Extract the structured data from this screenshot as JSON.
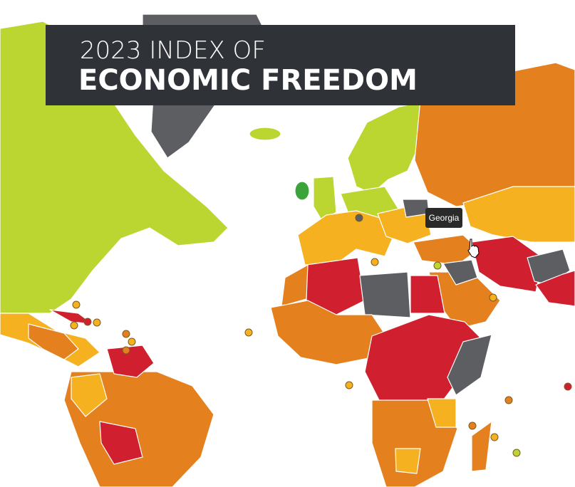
{
  "header": {
    "title_line1": "2023 INDEX OF",
    "title_line2": "ECONOMIC FREEDOM"
  },
  "tooltip": {
    "label": "Georgia"
  }
}
